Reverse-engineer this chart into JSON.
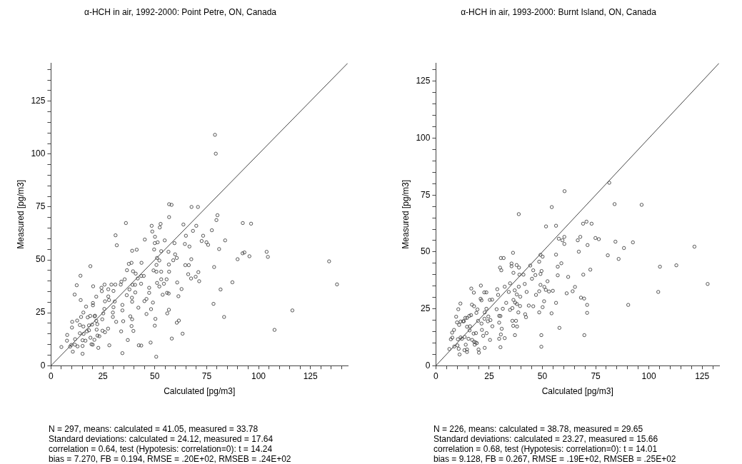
{
  "chart_data": [
    {
      "type": "scatter",
      "title": "α-HCH in air, 1992-2000: Point Petre, ON, Canada",
      "xlabel": "Calculated [pg/m3]",
      "ylabel": "Measured [pg/m3]",
      "xlim": [
        0,
        143
      ],
      "ylim": [
        0,
        143
      ],
      "xticks": [
        0,
        {
          "value": 5,
          "label": null
        },
        {
          "value": 10,
          "label": null
        },
        {
          "value": 15,
          "label": null
        },
        {
          "value": 20,
          "label": null
        },
        25,
        {
          "value": 30,
          "label": null
        },
        {
          "value": 35,
          "label": null
        },
        {
          "value": 40,
          "label": null
        },
        {
          "value": 45,
          "label": null
        },
        50,
        {
          "value": 55,
          "label": null
        },
        {
          "value": 60,
          "label": null
        },
        {
          "value": 65,
          "label": null
        },
        {
          "value": 70,
          "label": null
        },
        75,
        {
          "value": 80,
          "label": null
        },
        {
          "value": 85,
          "label": null
        },
        {
          "value": 90,
          "label": null
        },
        {
          "value": 95,
          "label": null
        },
        100,
        {
          "value": 105,
          "label": null
        },
        {
          "value": 110,
          "label": null
        },
        {
          "value": 115,
          "label": null
        },
        {
          "value": 120,
          "label": null
        },
        125,
        {
          "value": 130,
          "label": null
        },
        {
          "value": 135,
          "label": null
        },
        {
          "value": 140,
          "label": null
        }
      ],
      "yticks": [
        0,
        {
          "value": 5,
          "label": null
        },
        {
          "value": 10,
          "label": null
        },
        {
          "value": 15,
          "label": null
        },
        {
          "value": 20,
          "label": null
        },
        25,
        {
          "value": 30,
          "label": null
        },
        {
          "value": 35,
          "label": null
        },
        {
          "value": 40,
          "label": null
        },
        {
          "value": 45,
          "label": null
        },
        50,
        {
          "value": 55,
          "label": null
        },
        {
          "value": 60,
          "label": null
        },
        {
          "value": 65,
          "label": null
        },
        {
          "value": 70,
          "label": null
        },
        75,
        {
          "value": 80,
          "label": null
        },
        {
          "value": 85,
          "label": null
        },
        {
          "value": 90,
          "label": null
        },
        {
          "value": 95,
          "label": null
        },
        100,
        {
          "value": 105,
          "label": null
        },
        {
          "value": 110,
          "label": null
        },
        {
          "value": 115,
          "label": null
        },
        {
          "value": 120,
          "label": null
        },
        125,
        {
          "value": 130,
          "label": null
        },
        {
          "value": 135,
          "label": null
        },
        {
          "value": 140,
          "label": null
        }
      ],
      "annotations": [
        "N = 297, means: calculated = 41.05, measured = 33.78",
        "Standard deviations: calculated = 24.12, measured = 17.64",
        "correlation = 0.64, test (Hypotesis: correlation=0): t = 14.24",
        "bias = 7.270, FB = 0.194, RMSE = .20E+02, RMSEB = .24E+02"
      ],
      "series": [
        {
          "color": "#444444",
          "marker": "circle",
          "x": [
            134,
            137.8,
            116.3,
            107.7,
            103.9,
            104.5,
            95.6,
            96.4,
            92.4,
            93.2,
            92.3,
            89.9,
            87.4,
            83.4,
            81.7,
            81,
            83.9,
            78.3,
            78.6,
            77.5,
            80.2,
            79.7,
            79,
            79.4,
            56.9,
            58.1,
            67.7,
            70.8,
            56.9,
            36.1,
            31.1,
            31.7,
            75.7,
            74.9,
            63.8,
            70,
            68.4,
            65,
            73.3,
            72.6,
            64.5,
            66.7,
            59.5,
            56.6,
            59.8,
            60.6,
            58.9,
            53.1,
            51.1,
            52.2,
            50.8,
            49.7,
            50,
            51.4,
            54.8,
            50.1,
            52.4,
            52.8,
            48.8,
            48.5,
            45.2,
            41.3,
            39.1,
            67.6,
            71,
            64.7,
            66.4,
            66.1,
            67.5,
            69.7,
            71.4,
            62.9,
            60.8,
            61.4,
            61.6,
            60.6,
            63.4,
            58.2,
            56.8,
            56,
            56.7,
            55.9,
            55.7,
            56.9,
            56.8,
            53.8,
            54.4,
            53.1,
            51.1,
            52.2,
            53.1,
            49.4,
            50.8,
            47.3,
            47.3,
            46,
            49.1,
            48.2,
            50.3,
            50,
            50.7,
            48,
            46,
            45,
            43.4,
            43.5,
            44.7,
            41.8,
            40.8,
            39.5,
            43.6,
            38.8,
            37.5,
            36.6,
            40.5,
            39.3,
            40.6,
            39,
            39.1,
            36.5,
            37.8,
            35.5,
            33.9,
            33.6,
            34.4,
            34.4,
            34.8,
            33.8,
            34.4,
            37,
            38.2,
            39.1,
            38.8,
            39.7,
            42.1,
            42.3,
            43.5,
            31.4,
            29.8,
            29.8,
            30.1,
            30.7,
            30.1,
            29.1,
            31,
            27.95,
            27.6,
            27.6,
            25.8,
            26,
            25.2,
            25.7,
            24.7,
            24.5,
            24.3,
            26,
            27.5,
            24.8,
            28.1,
            22.8,
            23.3,
            22.4,
            22,
            21.8,
            21.2,
            21.8,
            20.3,
            20.2,
            20.2,
            18.98,
            14.2,
            12.4,
            11.4,
            14.3,
            16.9,
            15.6,
            14.5,
            13.9,
            12.6,
            10.2,
            10.1,
            9.8,
            10.5,
            5,
            7.8,
            7.7,
            9.2,
            11.5,
            12.8,
            11.6,
            13.9,
            15.2,
            15.2,
            15.2,
            16.6,
            18.3,
            19.8,
            17.7,
            18.9,
            21,
            19.5,
            20.1,
            20.9,
            19,
            22.3,
            15.6,
            17.3,
            15.7,
            18.3
          ],
          "values": [
            49.3,
            38.4,
            26.1,
            16.9,
            53.8,
            51.4,
            51.7,
            67.1,
            67.4,
            53.5,
            53.1,
            50.3,
            39.4,
            23,
            36,
            55.1,
            59.2,
            29.2,
            46.6,
            64,
            71.1,
            68.8,
            109.1,
            100.2,
            76.3,
            76,
            75,
            75,
            70.2,
            67.4,
            61.6,
            56.9,
            57.1,
            58.3,
            66.7,
            66.1,
            63.7,
            61.4,
            61.4,
            58.9,
            57.5,
            56.3,
            57.9,
            53.8,
            52.6,
            50.9,
            49.8,
            54.1,
            50.9,
            49.7,
            47.6,
            54.9,
            57.9,
            58.3,
            59.2,
            60.9,
            65.3,
            67,
            63.4,
            66.1,
            59.6,
            54.8,
            54.3,
            50.3,
            44.2,
            47.5,
            47.5,
            43.2,
            41.2,
            42,
            39.9,
            36.2,
            39.3,
            32.8,
            21.3,
            20.3,
            15.1,
            12.8,
            26.4,
            24.7,
            34.1,
            34.4,
            40.8,
            44.4,
            47.8,
            33.5,
            38.7,
            40.8,
            39.1,
            37.4,
            44.4,
            45,
            44.4,
            34.4,
            36.8,
            31.5,
            29.8,
            26.7,
            22.1,
            18.9,
            4.2,
            10.9,
            24.4,
            30.5,
            38.7,
            42.4,
            42.4,
            41.2,
            43.5,
            44.6,
            48.6,
            48.6,
            48.1,
            45.1,
            38.2,
            38.2,
            34.6,
            32.1,
            30.2,
            33.3,
            36,
            40.8,
            39.7,
            38.3,
            28.7,
            26.1,
            21,
            16.2,
            5.9,
            12.1,
            23.3,
            21.9,
            18.7,
            16.4,
            27.4,
            9.6,
            9.5,
            20.7,
            23,
            25.1,
            27.6,
            30.3,
            35.3,
            38.3,
            38.3,
            31,
            32.7,
            36.1,
            38.3,
            30.4,
            24.7,
            26.8,
            21.9,
            35.2,
            36.8,
            15.8,
            17.5,
            16.5,
            9.6,
            8.4,
            13.9,
            14.2,
            17,
            21.2,
            23.6,
            32.6,
            37.5,
            29.6,
            28.5,
            47,
            42.5,
            38,
            33.6,
            31,
            27.9,
            25.1,
            23,
            19.2,
            21.3,
            20.7,
            18,
            9.8,
            6.6,
            8.8,
            14.5,
            11.8,
            9,
            9.9,
            9.1,
            12.5,
            15.3,
            12,
            5.6,
            9.3,
            11.8,
            19,
            19.4,
            22.8,
            23.5,
            23.3,
            10.1,
            9.9,
            12.2,
            13.2,
            19.6,
            18.5,
            16.2,
            15,
            16.7
          ]
        },
        {
          "type": "line",
          "color": "#444444",
          "marker": "none",
          "x": [
            0,
            143
          ],
          "values": [
            0,
            143
          ]
        }
      ]
    },
    {
      "type": "scatter",
      "title": "α-HCH in air, 1993-2000: Burnt Island, ON, Canada",
      "xlabel": "Calculated [pg/m3]",
      "ylabel": "Measured [pg/m3]",
      "xlim": [
        0,
        133
      ],
      "ylim": [
        0,
        133
      ],
      "xticks": [
        0,
        {
          "value": 5,
          "label": null
        },
        {
          "value": 10,
          "label": null
        },
        {
          "value": 15,
          "label": null
        },
        {
          "value": 20,
          "label": null
        },
        25,
        {
          "value": 30,
          "label": null
        },
        {
          "value": 35,
          "label": null
        },
        {
          "value": 40,
          "label": null
        },
        {
          "value": 45,
          "label": null
        },
        50,
        {
          "value": 55,
          "label": null
        },
        {
          "value": 60,
          "label": null
        },
        {
          "value": 65,
          "label": null
        },
        {
          "value": 70,
          "label": null
        },
        75,
        {
          "value": 80,
          "label": null
        },
        {
          "value": 85,
          "label": null
        },
        {
          "value": 90,
          "label": null
        },
        {
          "value": 95,
          "label": null
        },
        100,
        {
          "value": 105,
          "label": null
        },
        {
          "value": 110,
          "label": null
        },
        {
          "value": 115,
          "label": null
        },
        {
          "value": 120,
          "label": null
        },
        125,
        {
          "value": 130,
          "label": null
        }
      ],
      "yticks": [
        0,
        {
          "value": 5,
          "label": null
        },
        {
          "value": 10,
          "label": null
        },
        {
          "value": 15,
          "label": null
        },
        {
          "value": 20,
          "label": null
        },
        25,
        {
          "value": 30,
          "label": null
        },
        {
          "value": 35,
          "label": null
        },
        {
          "value": 40,
          "label": null
        },
        {
          "value": 45,
          "label": null
        },
        50,
        {
          "value": 55,
          "label": null
        },
        {
          "value": 60,
          "label": null
        },
        {
          "value": 65,
          "label": null
        },
        {
          "value": 70,
          "label": null
        },
        75,
        {
          "value": 80,
          "label": null
        },
        {
          "value": 85,
          "label": null
        },
        {
          "value": 90,
          "label": null
        },
        {
          "value": 95,
          "label": null
        },
        100,
        {
          "value": 105,
          "label": null
        },
        {
          "value": 110,
          "label": null
        },
        {
          "value": 115,
          "label": null
        },
        {
          "value": 120,
          "label": null
        },
        125,
        {
          "value": 130,
          "label": null
        }
      ],
      "annotations": [
        "N = 226, means: calculated = 38.78, measured = 29.65",
        "Standard deviations: calculated = 23.27, measured = 15.66",
        "correlation = 0.68, test (Hypotesis: correlation=0): t = 14.01",
        "bias = 9.128, FB = 0.267, RMSE = .19E+02, RMSEB = .25E+02"
      ],
      "series": [
        {
          "color": "#444444",
          "marker": "circle",
          "x": [
            81.4,
            60.4,
            83.9,
            96.6,
            38.9,
            54.4,
            51.7,
            56.4,
            69.1,
            70.7,
            73.1,
            57.7,
            59.4,
            60.3,
            60.3,
            66.6,
            67.8,
            71.2,
            74.9,
            76.5,
            84.3,
            92.5,
            88.3,
            85.8,
            80.7,
            67.1,
            121.4,
            112.9,
            105.2,
            104.4,
            127.6,
            90.3,
            69.7,
            71,
            71,
            69.6,
            68.1,
            72.5,
            69.2,
            65.3,
            64.2,
            61.4,
            62.1,
            58.9,
            57.2,
            56.4,
            57.2,
            56.4,
            58,
            54.3,
            54.9,
            53.1,
            51.6,
            50.9,
            52.4,
            50.1,
            50.8,
            49.5,
            49.5,
            48.5,
            49.1,
            48.5,
            47,
            45.7,
            43.6,
            41.9,
            42.3,
            42.6,
            41.7,
            45.1,
            46.7,
            45.7,
            44.3,
            48.5,
            49.1,
            50.1,
            49.6,
            49.1,
            41.1,
            39.2,
            39,
            37.9,
            36.2,
            35.5,
            35.5,
            34.8,
            34.2,
            36.4,
            37,
            37.97,
            38.9,
            39.6,
            39.5,
            38.7,
            38,
            37.2,
            36.4,
            35.9,
            34.8,
            35.9,
            36.3,
            37.6,
            38.1,
            37.1,
            33,
            32.3,
            31.4,
            30.9,
            30.5,
            30.3,
            29.7,
            32.3,
            29.7,
            30.3,
            29.7,
            29.2,
            28.8,
            28.5,
            30.1,
            30.7,
            30.5,
            31.8,
            26.4,
            25.3,
            23.7,
            22.7,
            21.1,
            21.4,
            23.7,
            22.9,
            22.8,
            24.6,
            24.4,
            25.6,
            26.5,
            25.4,
            22.9,
            23.8,
            22.2,
            21.6,
            21.4,
            19.8,
            19,
            19.5,
            17.9,
            16.9,
            16.6,
            17.8,
            21,
            16.5,
            15.7,
            16,
            15.8,
            17.7,
            18.8,
            17,
            17.9,
            18.6,
            19.2,
            18.2,
            20,
            20.2,
            15.3,
            14,
            14.6,
            14.6,
            13.4,
            11.1,
            10.7,
            10.1,
            8.6,
            6.3,
            7,
            7.7,
            8.5,
            7.6,
            9.5,
            9.9,
            10.9,
            11.6,
            12.8,
            10.5,
            11.5,
            13.8,
            14.6,
            14.6,
            13.5,
            11.6,
            12.2,
            10.3,
            13.1
          ],
          "values": [
            80.4,
            76.7,
            71,
            70.7,
            66.6,
            69.7,
            61.2,
            61.5,
            62.4,
            63.3,
            62.4,
            55.8,
            55.1,
            56.6,
            53.5,
            55.1,
            56.6,
            53,
            56.1,
            55.6,
            54.5,
            54.2,
            51.7,
            46.9,
            48.5,
            50.1,
            52.3,
            44.1,
            43.5,
            32.4,
            35.9,
            26.7,
            13.4,
            23.2,
            26.7,
            29.5,
            29.9,
            42.2,
            40,
            34.6,
            32.7,
            31.8,
            39,
            45,
            43.5,
            48.8,
            39.7,
            27.6,
            16.6,
            23,
            32.9,
            32.6,
            33.3,
            34.6,
            37.1,
            25.7,
            28.3,
            13.4,
            8.3,
            23.4,
            35.5,
            32.7,
            31.1,
            26.1,
            26.4,
            22.6,
            21.3,
            32.4,
            35.9,
            38.2,
            39.8,
            41.9,
            44,
            45.7,
            48.7,
            47.9,
            41.6,
            40.3,
            40,
            40,
            43.1,
            44.2,
            49.6,
            44.9,
            43.7,
            36.2,
            32.4,
            40.8,
            33.1,
            31.3,
            34.7,
            30.3,
            26.2,
            23.4,
            27.1,
            27.7,
            28.9,
            25.3,
            24.5,
            19.7,
            17.5,
            19.7,
            17.2,
            13.4,
            27.6,
            34.7,
            25,
            16.2,
            13.7,
            8.1,
            11.8,
            12.1,
            18.9,
            21.8,
            21.9,
            31.1,
            33.6,
            24.8,
            43.1,
            41.9,
            47.3,
            47.3,
            29,
            28.9,
            32.2,
            32.2,
            35.2,
            28.7,
            25,
            23.4,
            20.6,
            21.6,
            19.5,
            20,
            17.3,
            11.3,
            7.8,
            14.3,
            13.1,
            15.7,
            18.5,
            19.7,
            23.2,
            24.7,
            26.1,
            26.8,
            33.9,
            32.1,
            29.4,
            22.2,
            21.9,
            17.3,
            15.5,
            14.1,
            14.3,
            11.3,
            10.5,
            10.2,
            9.9,
            9.2,
            7.1,
            5.7,
            11.8,
            9.2,
            7.1,
            6,
            6.8,
            4.9,
            7.4,
            8.9,
            8.4,
            7.3,
            11.6,
            12.3,
            15.7,
            14.5,
            21.5,
            19,
            17.9,
            19.4,
            19.5,
            24.8,
            27.3,
            21,
            21,
            17.1,
            12.6,
            12.4,
            11.8,
            11.6,
            19.5
          ]
        },
        {
          "type": "line",
          "color": "#444444",
          "marker": "none",
          "x": [
            0,
            133
          ],
          "values": [
            0,
            133
          ]
        }
      ]
    }
  ]
}
